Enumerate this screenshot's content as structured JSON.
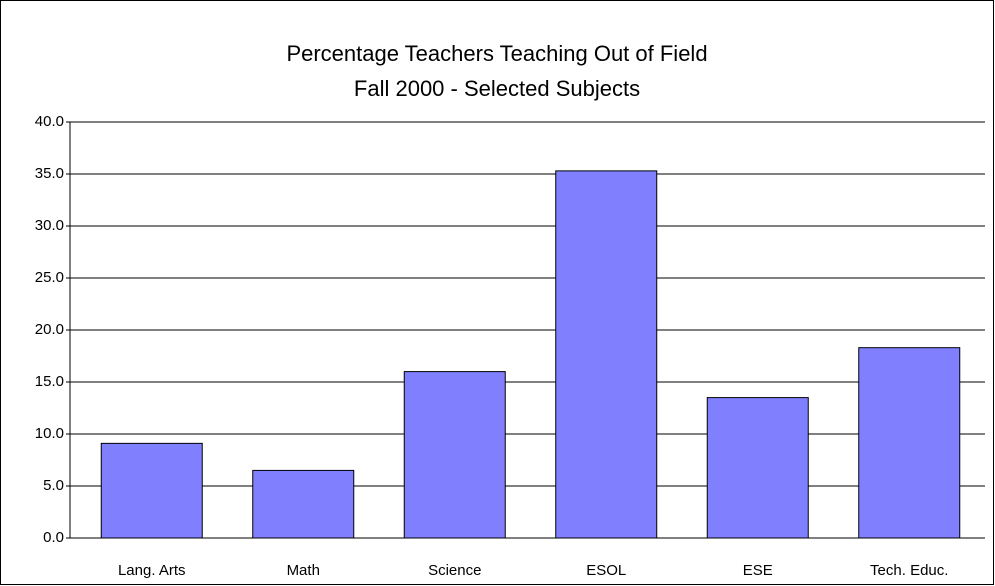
{
  "chart_data": {
    "type": "bar",
    "title": [
      "Percentage Teachers Teaching Out of Field",
      "Fall 2000 -  Selected Subjects"
    ],
    "categories": [
      "Lang. Arts",
      "Math",
      "Science",
      "ESOL",
      "ESE",
      "Tech. Educ."
    ],
    "values": [
      9.1,
      6.5,
      16.0,
      35.3,
      13.5,
      18.3
    ],
    "color": "#8080ff",
    "ylim": [
      0,
      40
    ],
    "yticks": [
      {
        "value": 0,
        "label": "0.0"
      },
      {
        "value": 5,
        "label": "5.0"
      },
      {
        "value": 10,
        "label": "10.0"
      },
      {
        "value": 15,
        "label": "15.0"
      },
      {
        "value": 20,
        "label": "20.0"
      },
      {
        "value": 25,
        "label": "25.0"
      },
      {
        "value": 30,
        "label": "30.0"
      },
      {
        "value": 35,
        "label": "35.0"
      },
      {
        "value": 40,
        "label": "40.0"
      }
    ],
    "grid": true
  }
}
